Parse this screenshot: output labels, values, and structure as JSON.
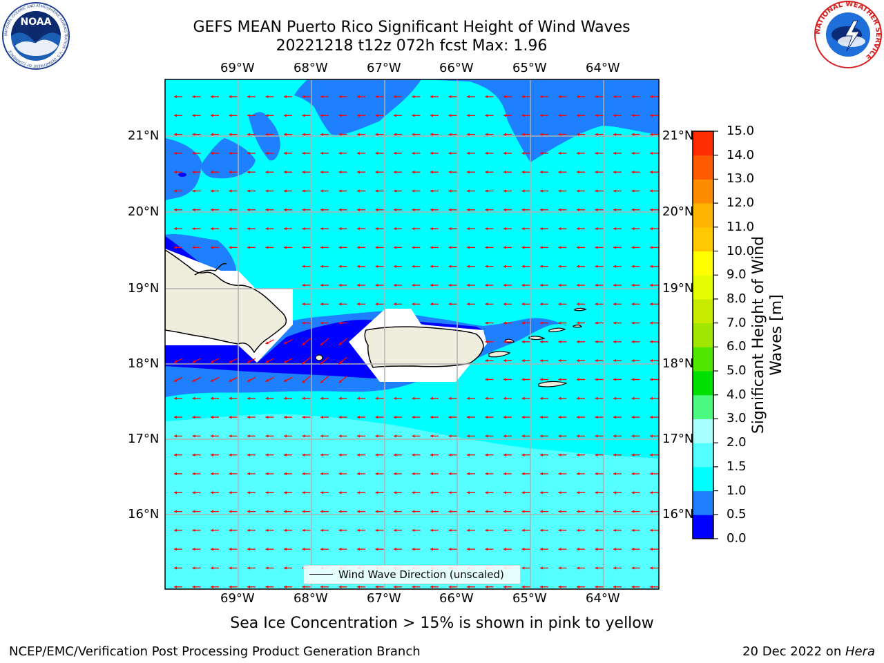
{
  "header": {
    "title_line1": "GEFS MEAN Puerto Rico Significant Height of Wind Waves",
    "title_line2": "20221218 t12z 072h fcst   Max: 1.96"
  },
  "logos": {
    "noaa_text": "NOAA",
    "noaa_ring_text": "NATIONAL OCEANIC AND ATMOSPHERIC ADMINISTRATION · U.S. DEPARTMENT OF COMMERCE",
    "nws_ring_text": "NATIONAL WEATHER SERVICE"
  },
  "map": {
    "lon_labels": [
      "69°W",
      "68°W",
      "67°W",
      "66°W",
      "65°W",
      "64°W"
    ],
    "lat_labels": [
      "21°N",
      "20°N",
      "19°N",
      "18°N",
      "17°N",
      "16°N"
    ],
    "legend_text": "Wind Wave Direction (unscaled)",
    "wind_direction": "westward (from east)",
    "colors": {
      "land": "#efedde",
      "arrow": "#ff0000",
      "gridline": "#b0b0b0"
    }
  },
  "colorbar": {
    "label": "Significant Height of Wind Waves [m]",
    "ticks": [
      "0.0",
      "0.5",
      "1.0",
      "1.5",
      "2.0",
      "3.0",
      "4.0",
      "5.0",
      "6.0",
      "7.0",
      "8.0",
      "9.0",
      "10.0",
      "11.0",
      "12.0",
      "13.0",
      "14.0",
      "15.0"
    ],
    "colors": [
      "#0000ff",
      "#1e7fff",
      "#00ffff",
      "#55ffff",
      "#aaffff",
      "#4cfa80",
      "#00e000",
      "#50e600",
      "#a0e600",
      "#c8ec00",
      "#e6ff00",
      "#ffff00",
      "#ffc800",
      "#ffb400",
      "#ff8c00",
      "#ff5a00",
      "#ff2d00",
      "#ff0000"
    ]
  },
  "footer": {
    "note": "Sea Ice Concentration > 15% is shown in pink to yellow",
    "left": "NCEP/EMC/Verification Post Processing Product Generation Branch",
    "date": "20 Dec 2022 on ",
    "host": "Hera"
  }
}
